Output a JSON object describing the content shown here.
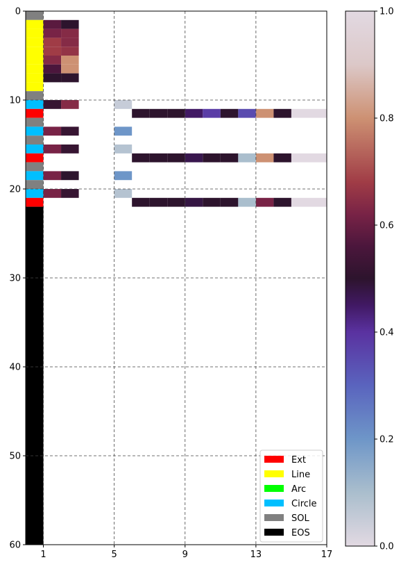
{
  "chart_data": {
    "type": "heatmap",
    "title": "",
    "xlabel": "",
    "ylabel": "",
    "xlim": [
      0,
      17
    ],
    "ylim": [
      60,
      0
    ],
    "x_ticks": [
      "1",
      "5",
      "9",
      "13",
      "17"
    ],
    "y_ticks": [
      "0",
      "10",
      "20",
      "30",
      "40",
      "50",
      "60"
    ],
    "grid": true,
    "row_types": [
      "SOL",
      "Line",
      "Line",
      "Line",
      "Line",
      "Line",
      "Line",
      "Line",
      "Line",
      "SOL",
      "Circle",
      "Ext",
      "SOL",
      "Circle",
      "SOL",
      "Circle",
      "Ext",
      "SOL",
      "Circle",
      "SOL",
      "Circle",
      "Ext",
      "EOS"
    ],
    "eos_extends_to": 60,
    "cells": [
      [
        1,
        1,
        0.58
      ],
      [
        1,
        2,
        0.5
      ],
      [
        2,
        1,
        0.62
      ],
      [
        2,
        2,
        0.64
      ],
      [
        3,
        1,
        0.68
      ],
      [
        3,
        2,
        0.64
      ],
      [
        4,
        1,
        0.68
      ],
      [
        4,
        2,
        0.66
      ],
      [
        5,
        1,
        0.64
      ],
      [
        5,
        2,
        0.8
      ],
      [
        6,
        1,
        0.56
      ],
      [
        6,
        2,
        0.8
      ],
      [
        7,
        1,
        0.5
      ],
      [
        7,
        2,
        0.5
      ],
      [
        10,
        1,
        0.52
      ],
      [
        10,
        2,
        0.64
      ],
      [
        10,
        5,
        0.05
      ],
      [
        11,
        6,
        0.5
      ],
      [
        11,
        7,
        0.5
      ],
      [
        11,
        8,
        0.5
      ],
      [
        11,
        9,
        0.45
      ],
      [
        11,
        10,
        0.38
      ],
      [
        11,
        11,
        0.5
      ],
      [
        11,
        12,
        0.35
      ],
      [
        11,
        13,
        0.8
      ],
      [
        11,
        14,
        0.5
      ],
      [
        11,
        15,
        0.0
      ],
      [
        11,
        16,
        0.0
      ],
      [
        13,
        1,
        0.62
      ],
      [
        13,
        2,
        0.52
      ],
      [
        13,
        5,
        0.2
      ],
      [
        15,
        1,
        0.62
      ],
      [
        15,
        2,
        0.52
      ],
      [
        15,
        5,
        0.08
      ],
      [
        16,
        6,
        0.5
      ],
      [
        16,
        7,
        0.5
      ],
      [
        16,
        8,
        0.5
      ],
      [
        16,
        9,
        0.47
      ],
      [
        16,
        10,
        0.5
      ],
      [
        16,
        11,
        0.5
      ],
      [
        16,
        12,
        0.1
      ],
      [
        16,
        13,
        0.8
      ],
      [
        16,
        14,
        0.5
      ],
      [
        16,
        15,
        0.0
      ],
      [
        16,
        16,
        0.0
      ],
      [
        18,
        1,
        0.62
      ],
      [
        18,
        2,
        0.5
      ],
      [
        18,
        5,
        0.2
      ],
      [
        20,
        1,
        0.62
      ],
      [
        20,
        2,
        0.52
      ],
      [
        20,
        5,
        0.08
      ],
      [
        21,
        6,
        0.5
      ],
      [
        21,
        7,
        0.5
      ],
      [
        21,
        8,
        0.5
      ],
      [
        21,
        9,
        0.48
      ],
      [
        21,
        10,
        0.5
      ],
      [
        21,
        11,
        0.5
      ],
      [
        21,
        12,
        0.1
      ],
      [
        21,
        13,
        0.62
      ],
      [
        21,
        14,
        0.5
      ],
      [
        21,
        15,
        0.0
      ],
      [
        21,
        16,
        0.0
      ]
    ],
    "legend": {
      "placement": "lower-right",
      "entries": [
        {
          "label": "Ext",
          "color": "#ff0000"
        },
        {
          "label": "Line",
          "color": "#ffff00"
        },
        {
          "label": "Arc",
          "color": "#00ff00"
        },
        {
          "label": "Circle",
          "color": "#00bfff"
        },
        {
          "label": "SOL",
          "color": "#808080"
        },
        {
          "label": "EOS",
          "color": "#000000"
        }
      ]
    },
    "colorbar": {
      "colormap": "twilight",
      "range": [
        0,
        1
      ],
      "ticks": [
        "0.0",
        "0.2",
        "0.4",
        "0.6",
        "0.8",
        "1.0"
      ]
    }
  }
}
